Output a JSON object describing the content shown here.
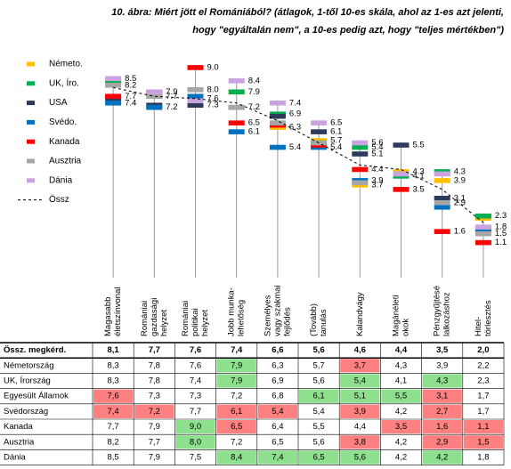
{
  "chart_data": {
    "type": "marker-line",
    "title": [
      "10. ábra: Miért jött el Romániából? (átlagok, 1-től 10-es skála, ahol az 1-es azt jelenti,",
      "hogy \"egyáltalán nem\", a 10-es pedig azt, hogy \"teljes mértékben\")"
    ],
    "categories": [
      [
        "Magasabb",
        "életszínvonal"
      ],
      [
        "Romániai",
        "gazdasági",
        "helyzet"
      ],
      [
        "Romániai",
        "politikai",
        "helyzet"
      ],
      [
        "Jobb munka-",
        "lehetőség"
      ],
      [
        "Személyes",
        "vagy szakmai",
        "fejlődés"
      ],
      [
        "(Tovább)",
        "tanulás"
      ],
      [
        "Kalandvágy"
      ],
      [
        "Magánéleti",
        "okok"
      ],
      [
        "Pénzgyűjtésé",
        "lalkozáshoz"
      ],
      [
        "Hitel-",
        "törlesztés"
      ]
    ],
    "series": [
      {
        "name": "Németo.",
        "color": "#ffc000",
        "values": [
          8.3,
          7.8,
          7.6,
          7.9,
          6.3,
          5.7,
          3.7,
          4.3,
          3.9,
          2.2
        ],
        "value_labels": [
          null,
          null,
          "7.6",
          null,
          "6.3",
          "5.7",
          "3.7",
          "4.3",
          "3.9",
          null
        ]
      },
      {
        "name": "UK, Íro.",
        "color": "#00b050",
        "values": [
          8.3,
          7.8,
          7.4,
          7.9,
          6.9,
          5.6,
          5.4,
          4.1,
          4.3,
          2.3
        ],
        "value_labels": [
          null,
          null,
          null,
          "7.9",
          "6.9",
          null,
          "5.4",
          "4.1",
          "4.3",
          "2.3"
        ]
      },
      {
        "name": "USA",
        "color": "#2e3a5c",
        "values": [
          7.6,
          7.3,
          7.3,
          7.2,
          6.8,
          6.1,
          5.1,
          5.5,
          3.1,
          1.7
        ],
        "value_labels": [
          null,
          null,
          "7.3",
          null,
          null,
          "6.1",
          "5.1",
          "5.5",
          "3.1",
          null
        ]
      },
      {
        "name": "Svédo.",
        "color": "#0070c0",
        "values": [
          7.4,
          7.2,
          7.7,
          6.1,
          5.4,
          5.4,
          3.9,
          4.2,
          2.7,
          1.7
        ],
        "value_labels": [
          "7.4",
          "7.2",
          null,
          "6.1",
          "5.4",
          "5.4",
          "3.9",
          null,
          null,
          null
        ]
      },
      {
        "name": "Kanada",
        "color": "#ff0000",
        "values": [
          7.7,
          7.9,
          9.0,
          6.5,
          6.4,
          5.5,
          4.4,
          3.5,
          1.6,
          1.1
        ],
        "value_labels": [
          "7.7",
          null,
          "9.0",
          "6.5",
          null,
          null,
          "4.4",
          "3.5",
          "1.6",
          "1.1"
        ]
      },
      {
        "name": "Ausztria",
        "color": "#a6a6a6",
        "values": [
          8.2,
          7.7,
          8.0,
          7.2,
          6.5,
          5.6,
          3.8,
          4.2,
          2.9,
          1.5
        ],
        "value_labels": [
          "8.2",
          "7.7",
          "8.0",
          "7.2",
          null,
          null,
          null,
          null,
          "2.9",
          "1.5"
        ]
      },
      {
        "name": "Dánia",
        "color": "#c9a3e0",
        "values": [
          8.5,
          7.9,
          7.5,
          8.4,
          7.4,
          6.5,
          5.6,
          4.2,
          4.2,
          1.8
        ],
        "value_labels": [
          "8.5",
          "7.9",
          null,
          "8.4",
          "7.4",
          "6.5",
          "5.6",
          null,
          null,
          "1.8"
        ]
      },
      {
        "name": "Össz",
        "color": "#000000",
        "dash": true,
        "values": [
          8.1,
          7.7,
          7.6,
          7.4,
          6.6,
          5.6,
          4.6,
          4.4,
          3.5,
          2.0
        ]
      }
    ]
  },
  "table": {
    "rows": [
      {
        "label": "Össz. megkérd.",
        "cells": [
          "8,1",
          "7,7",
          "7,6",
          "7,4",
          "6,6",
          "5,6",
          "4,6",
          "4,4",
          "3,5",
          "2,0"
        ],
        "fills": [
          null,
          null,
          null,
          null,
          null,
          null,
          null,
          null,
          null,
          null
        ]
      },
      {
        "label": "Németország",
        "cells": [
          "8,3",
          "7,8",
          "7,6",
          "7,9",
          "6,3",
          "5,7",
          "3,7",
          "4,3",
          "3,9",
          "2,2"
        ],
        "fills": [
          null,
          null,
          null,
          "#8ee08e",
          null,
          null,
          "#ff8080",
          null,
          null,
          null
        ]
      },
      {
        "label": "UK, Írország",
        "cells": [
          "8,3",
          "7,8",
          "7,4",
          "7,9",
          "6,9",
          "5,6",
          "5,4",
          "4,1",
          "4,3",
          "2,3"
        ],
        "fills": [
          null,
          null,
          null,
          "#8ee08e",
          null,
          null,
          "#8ee08e",
          null,
          "#8ee08e",
          null
        ]
      },
      {
        "label": "Egyesült Államok",
        "cells": [
          "7,6",
          "7,3",
          "7,3",
          "7,2",
          "6,8",
          "6,1",
          "5,1",
          "5,5",
          "3,1",
          "1,7"
        ],
        "fills": [
          "#ff8080",
          null,
          null,
          null,
          null,
          "#8ee08e",
          "#8ee08e",
          "#8ee08e",
          "#ff8080",
          null
        ]
      },
      {
        "label": "Svédország",
        "cells": [
          "7,4",
          "7,2",
          "7,7",
          "6,1",
          "5,4",
          "5,4",
          "3,9",
          "4,2",
          "2,7",
          "1,7"
        ],
        "fills": [
          "#ff8080",
          "#ff8080",
          null,
          "#ff8080",
          "#ff8080",
          null,
          "#ff8080",
          null,
          "#ff8080",
          null
        ]
      },
      {
        "label": "Kanada",
        "cells": [
          "7,7",
          "7,9",
          "9,0",
          "6,5",
          "6,4",
          "5,5",
          "4,4",
          "3,5",
          "1,6",
          "1,1"
        ],
        "fills": [
          null,
          null,
          "#8ee08e",
          "#ff8080",
          null,
          null,
          null,
          "#ff8080",
          "#ff8080",
          "#ff8080"
        ]
      },
      {
        "label": "Ausztria",
        "cells": [
          "8,2",
          "7,7",
          "8,0",
          "7,2",
          "6,5",
          "5,6",
          "3,8",
          "4,2",
          "2,9",
          "1,5"
        ],
        "fills": [
          null,
          null,
          "#8ee08e",
          null,
          null,
          null,
          "#ff8080",
          null,
          "#ff8080",
          "#ff8080"
        ]
      },
      {
        "label": "Dánia",
        "cells": [
          "8,5",
          "7,9",
          "7,5",
          "8,4",
          "7,4",
          "6,5",
          "5,6",
          "4,2",
          "4,2",
          "1,8"
        ],
        "fills": [
          null,
          null,
          null,
          "#8ee08e",
          "#8ee08e",
          "#8ee08e",
          "#8ee08e",
          null,
          "#8ee08e",
          null
        ]
      }
    ]
  }
}
